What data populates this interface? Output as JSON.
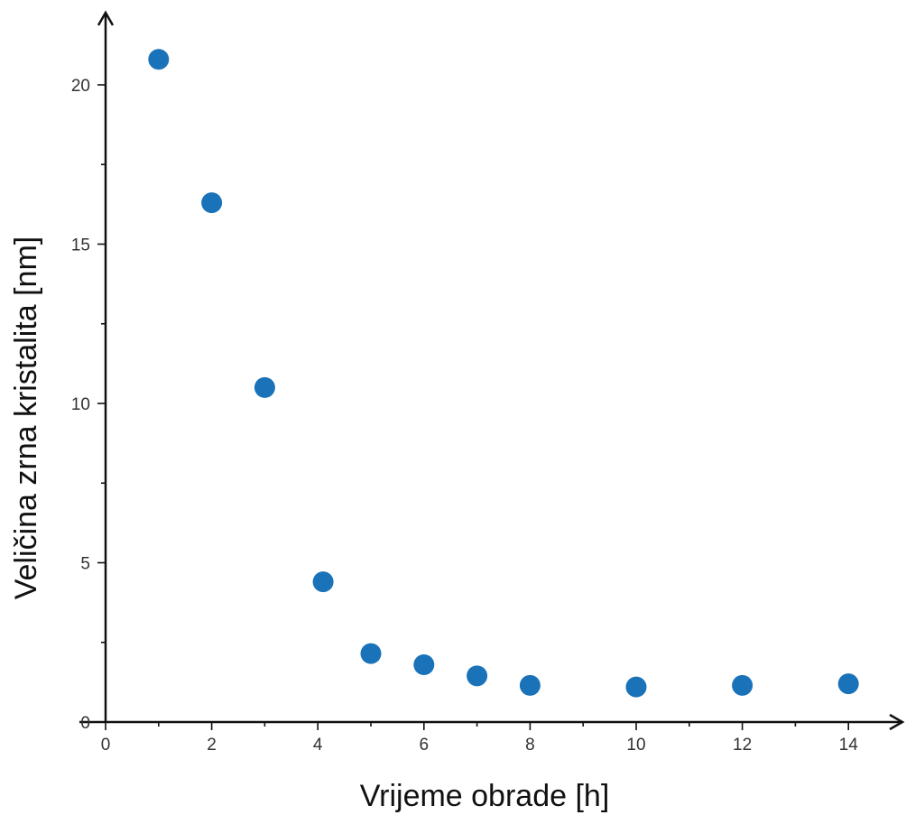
{
  "chart_data": {
    "type": "scatter",
    "xlabel": "Vrijeme obrade [h]",
    "ylabel": "Veličina zrna kristalita [nm]",
    "x_ticks": [
      0,
      2,
      4,
      6,
      8,
      10,
      12,
      14
    ],
    "y_ticks": [
      0,
      5,
      10,
      15,
      20
    ],
    "xlim": [
      0,
      14
    ],
    "ylim": [
      0,
      20
    ],
    "grid": false,
    "marker_color": "#1a72b9",
    "series": [
      {
        "x": [
          1,
          2,
          3,
          4.1,
          5,
          6,
          7,
          8,
          10,
          12,
          14
        ],
        "y": [
          20.8,
          16.3,
          10.5,
          4.4,
          2.15,
          1.8,
          1.45,
          1.15,
          1.1,
          1.15,
          1.2
        ]
      }
    ]
  }
}
